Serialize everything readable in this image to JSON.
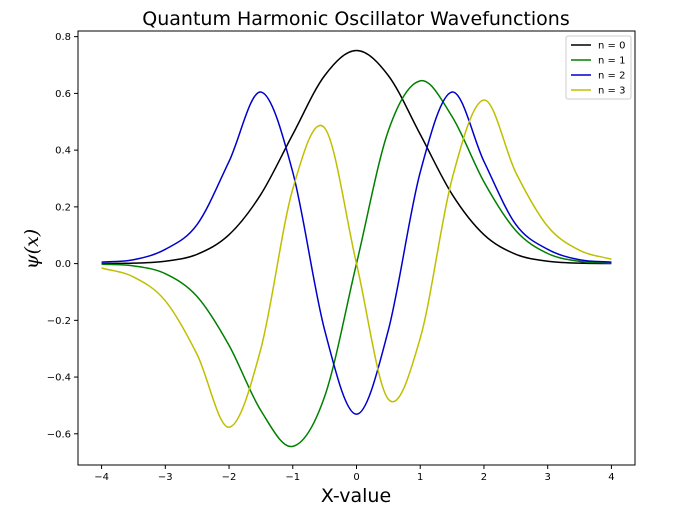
{
  "chart_data": {
    "type": "line",
    "title": "Quantum Harmonic Oscillator Wavefunctions",
    "xlabel": "X-value",
    "ylabel": "ψ(x)",
    "xlim": [
      -4.37,
      4.37
    ],
    "ylim": [
      -0.71,
      0.82
    ],
    "xticks": [
      -4,
      -3,
      -2,
      -1,
      0,
      1,
      2,
      3,
      4
    ],
    "xtick_labels": [
      "−4",
      "−3",
      "−2",
      "−1",
      "0",
      "1",
      "2",
      "3",
      "4"
    ],
    "yticks": [
      -0.6,
      -0.4,
      -0.2,
      0.0,
      0.2,
      0.4,
      0.6,
      0.8
    ],
    "ytick_labels": [
      "−0.6",
      "−0.4",
      "−0.2",
      "0.0",
      "0.2",
      "0.4",
      "0.6",
      "0.8"
    ],
    "grid": false,
    "legend_position": "top-right",
    "x": [
      -4.0,
      -3.5,
      -3.0,
      -2.5,
      -2.0,
      -1.5,
      -1.0,
      -0.5,
      0.0,
      0.5,
      1.0,
      1.5,
      2.0,
      2.5,
      3.0,
      3.5,
      4.0
    ],
    "series": [
      {
        "name": "n = 0",
        "color": "#000000",
        "values": [
          0.0003,
          0.0016,
          0.0084,
          0.0329,
          0.1019,
          0.2443,
          0.4556,
          0.6627,
          0.7511,
          0.6627,
          0.4556,
          0.2443,
          0.1019,
          0.0329,
          0.0084,
          0.0016,
          0.0003
        ]
      },
      {
        "name": "n = 1",
        "color": "#008000",
        "values": [
          -0.0019,
          -0.0079,
          -0.0356,
          -0.1163,
          -0.2882,
          -0.5182,
          -0.6443,
          -0.4686,
          0.0,
          0.4686,
          0.6443,
          0.5182,
          0.2882,
          0.1163,
          0.0356,
          0.0079,
          0.0019
        ]
      },
      {
        "name": "n = 2",
        "color": "#0000cc",
        "values": [
          0.005,
          0.0136,
          0.0503,
          0.1381,
          0.3602,
          0.6049,
          0.3222,
          -0.2343,
          -0.5311,
          -0.2343,
          0.3222,
          0.6049,
          0.3602,
          0.1381,
          0.0503,
          0.0136,
          0.005
        ]
      },
      {
        "name": "n = 3",
        "color": "#bfbf00",
        "values": [
          -0.0154,
          -0.0469,
          -0.1312,
          -0.3208,
          -0.5768,
          -0.2994,
          0.263,
          0.4783,
          0.0,
          -0.4783,
          -0.263,
          0.2994,
          0.5768,
          0.3208,
          0.1312,
          0.0469,
          0.0154
        ]
      }
    ]
  }
}
